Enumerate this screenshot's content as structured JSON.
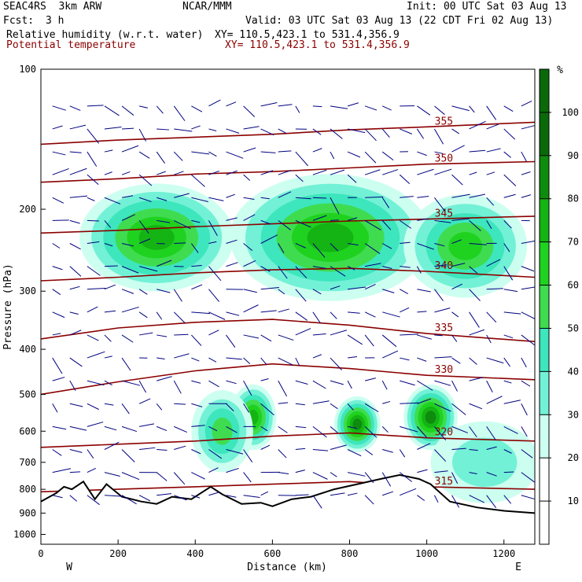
{
  "header": {
    "title_left": "SEAC4RS  3km ARW",
    "title_center": "NCAR/MMM",
    "init": "Init: 00 UTC Sat 03 Aug 13",
    "fcst_label": "Fcst:",
    "fcst_value": "3 h",
    "valid": "Valid: 03 UTC Sat 03 Aug 13 (22 CDT Fri 02 Aug 13)",
    "field1": "Relative humidity (w.r.t. water)",
    "field1_xy": "XY= 110.5,423.1 to 531.4,356.9",
    "field2": "Potential temperature",
    "field2_xy": "XY= 110.5,423.1 to 531.4,356.9"
  },
  "colors": {
    "theta": "#8b0000",
    "wind": "#000080",
    "terrain": "#000000",
    "rh_scale": [
      "#ffffff",
      "#ffffff",
      "#ffffff",
      "#ccfff0",
      "#72f1d6",
      "#3de6bc",
      "#3fdc50",
      "#1fd21f",
      "#14b414",
      "#0e8c0e",
      "#0a6a0a"
    ]
  },
  "chart_data": {
    "type": "heatmap",
    "xlabel": "Distance (km)",
    "ylabel": "Pressure (hPa)",
    "x_ticks": [
      "0",
      "200",
      "400",
      "600",
      "800",
      "1000",
      "1200"
    ],
    "y_ticks": [
      "100",
      "200",
      "300",
      "400",
      "500",
      "600",
      "700",
      "800",
      "900",
      "1000"
    ],
    "xlim": [
      0,
      1280
    ],
    "ylim": [
      1050,
      100
    ],
    "y_scale": "log",
    "left_end": "W",
    "right_end": "E",
    "colorbar": {
      "unit": "%",
      "levels": [
        10,
        20,
        30,
        40,
        50,
        60,
        70,
        80,
        90,
        100
      ],
      "range": [
        0,
        110
      ]
    },
    "theta_contours": [
      {
        "label": "355",
        "level": 355,
        "points": [
          [
            0,
            145
          ],
          [
            200,
            142
          ],
          [
            400,
            140
          ],
          [
            600,
            138
          ],
          [
            800,
            135
          ],
          [
            1000,
            133
          ],
          [
            1280,
            130
          ]
        ]
      },
      {
        "label": "350",
        "level": 350,
        "points": [
          [
            0,
            175
          ],
          [
            200,
            172
          ],
          [
            400,
            168
          ],
          [
            600,
            166
          ],
          [
            800,
            163
          ],
          [
            1000,
            160
          ],
          [
            1280,
            158
          ]
        ]
      },
      {
        "label": "345",
        "level": 345,
        "points": [
          [
            0,
            225
          ],
          [
            200,
            222
          ],
          [
            400,
            218
          ],
          [
            600,
            215
          ],
          [
            800,
            212
          ],
          [
            1000,
            210
          ],
          [
            1280,
            207
          ]
        ]
      },
      {
        "label": "340",
        "level": 340,
        "points": [
          [
            0,
            285
          ],
          [
            200,
            280
          ],
          [
            400,
            274
          ],
          [
            600,
            270
          ],
          [
            800,
            268
          ],
          [
            1000,
            272
          ],
          [
            1280,
            280
          ]
        ]
      },
      {
        "label": "335",
        "level": 335,
        "points": [
          [
            0,
            380
          ],
          [
            200,
            360
          ],
          [
            400,
            350
          ],
          [
            600,
            345
          ],
          [
            800,
            355
          ],
          [
            1000,
            370
          ],
          [
            1280,
            385
          ]
        ]
      },
      {
        "label": "330",
        "level": 330,
        "points": [
          [
            0,
            500
          ],
          [
            200,
            470
          ],
          [
            400,
            445
          ],
          [
            600,
            430
          ],
          [
            800,
            440
          ],
          [
            1000,
            455
          ],
          [
            1280,
            465
          ]
        ]
      },
      {
        "label": "320",
        "level": 320,
        "points": [
          [
            0,
            650
          ],
          [
            200,
            640
          ],
          [
            400,
            630
          ],
          [
            600,
            615
          ],
          [
            800,
            605
          ],
          [
            1000,
            620
          ],
          [
            1280,
            630
          ]
        ]
      },
      {
        "label": "315",
        "level": 315,
        "points": [
          [
            0,
            810
          ],
          [
            200,
            800
          ],
          [
            400,
            790
          ],
          [
            600,
            780
          ],
          [
            800,
            770
          ],
          [
            1000,
            790
          ],
          [
            1280,
            800
          ]
        ]
      }
    ],
    "terrain": [
      [
        0,
        850
      ],
      [
        40,
        815
      ],
      [
        60,
        790
      ],
      [
        80,
        800
      ],
      [
        110,
        770
      ],
      [
        140,
        840
      ],
      [
        170,
        780
      ],
      [
        210,
        830
      ],
      [
        260,
        850
      ],
      [
        300,
        860
      ],
      [
        340,
        830
      ],
      [
        390,
        840
      ],
      [
        440,
        790
      ],
      [
        470,
        820
      ],
      [
        520,
        860
      ],
      [
        570,
        855
      ],
      [
        600,
        870
      ],
      [
        650,
        840
      ],
      [
        700,
        830
      ],
      [
        760,
        800
      ],
      [
        820,
        780
      ],
      [
        880,
        760
      ],
      [
        930,
        745
      ],
      [
        980,
        760
      ],
      [
        1010,
        780
      ],
      [
        1060,
        850
      ],
      [
        1130,
        875
      ],
      [
        1200,
        890
      ],
      [
        1280,
        900
      ]
    ],
    "rh_blobs": [
      {
        "x": 300,
        "p": 230,
        "rx": 200,
        "dp": 60,
        "value": 80
      },
      {
        "x": 750,
        "p": 230,
        "rx": 260,
        "dp": 70,
        "value": 85
      },
      {
        "x": 1100,
        "p": 240,
        "rx": 160,
        "dp": 60,
        "value": 70
      },
      {
        "x": 550,
        "p": 560,
        "rx": 60,
        "dp": 90,
        "value": 85
      },
      {
        "x": 820,
        "p": 580,
        "rx": 60,
        "dp": 80,
        "value": 90
      },
      {
        "x": 1010,
        "p": 560,
        "rx": 70,
        "dp": 90,
        "value": 90
      },
      {
        "x": 470,
        "p": 600,
        "rx": 80,
        "dp": 120,
        "value": 60
      },
      {
        "x": 1150,
        "p": 700,
        "rx": 140,
        "dp": 140,
        "value": 45
      }
    ]
  }
}
